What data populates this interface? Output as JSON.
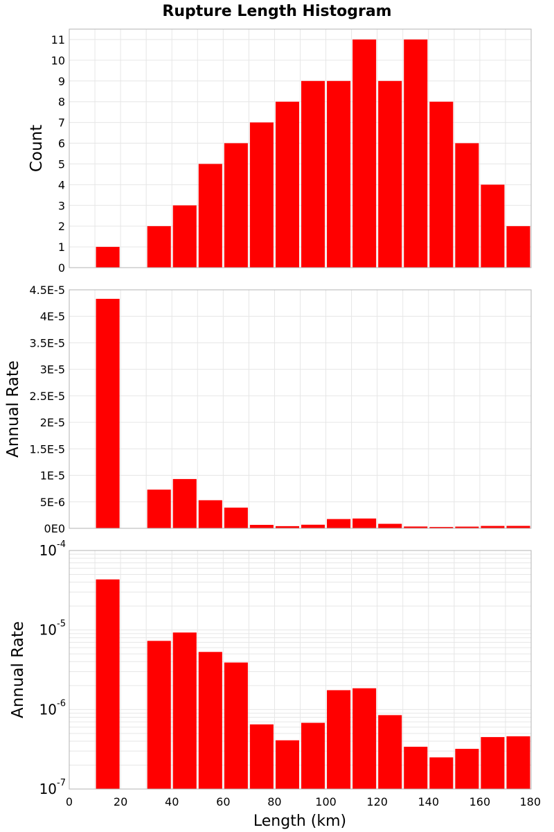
{
  "title": "Rupture Length Histogram",
  "xlabel": "Length (km)",
  "colors": {
    "bar": "#ff0000",
    "grid": "#e6e6e6",
    "frame": "#b3b3b3"
  },
  "chart_data": [
    {
      "type": "bar",
      "ylabel": "Count",
      "scale": "linear",
      "xlim": [
        0,
        180
      ],
      "ylim": [
        0,
        11.5
      ],
      "x": [
        15,
        35,
        45,
        55,
        65,
        75,
        85,
        95,
        105,
        115,
        125,
        135,
        145,
        155,
        165,
        175
      ],
      "bin_width": 10,
      "values": [
        1,
        2,
        3,
        5,
        6,
        7,
        8,
        9,
        9,
        11,
        9,
        11,
        8,
        6,
        4,
        2
      ],
      "yticks": [
        0,
        1,
        2,
        3,
        4,
        5,
        6,
        7,
        8,
        9,
        10,
        11
      ],
      "ytick_labels": [
        "0",
        "1",
        "2",
        "3",
        "4",
        "5",
        "6",
        "7",
        "8",
        "9",
        "10",
        "11"
      ],
      "grid": true
    },
    {
      "type": "bar",
      "ylabel": "Annual Rate",
      "scale": "linear",
      "xlim": [
        0,
        180
      ],
      "ylim": [
        0,
        4.5e-05
      ],
      "x": [
        15,
        35,
        45,
        55,
        65,
        75,
        85,
        95,
        105,
        115,
        125,
        135,
        145,
        155,
        165,
        175
      ],
      "bin_width": 10,
      "values": [
        4.33e-05,
        7.3e-06,
        9.3e-06,
        5.3e-06,
        3.9e-06,
        6.5e-07,
        4.1e-07,
        6.8e-07,
        1.75e-06,
        1.85e-06,
        8.5e-07,
        3.4e-07,
        2.5e-07,
        3.2e-07,
        4.5e-07,
        4.6e-07
      ],
      "yticks": [
        0,
        5e-06,
        1e-05,
        1.5e-05,
        2e-05,
        2.5e-05,
        3e-05,
        3.5e-05,
        4e-05,
        4.5e-05
      ],
      "ytick_labels": [
        "0E0",
        "5E-6",
        "1E-5",
        "1.5E-5",
        "2E-5",
        "2.5E-5",
        "3E-5",
        "3.5E-5",
        "4E-5",
        "4.5E-5"
      ],
      "grid": true
    },
    {
      "type": "bar",
      "ylabel": "Annual Rate",
      "scale": "log",
      "xlim": [
        0,
        180
      ],
      "ylim": [
        1e-07,
        0.0001
      ],
      "x": [
        15,
        35,
        45,
        55,
        65,
        75,
        85,
        95,
        105,
        115,
        125,
        135,
        145,
        155,
        165,
        175
      ],
      "bin_width": 10,
      "values": [
        4.33e-05,
        7.3e-06,
        9.3e-06,
        5.3e-06,
        3.9e-06,
        6.5e-07,
        4.1e-07,
        6.8e-07,
        1.75e-06,
        1.85e-06,
        8.5e-07,
        3.4e-07,
        2.5e-07,
        3.2e-07,
        4.5e-07,
        4.6e-07
      ],
      "ytick_labels": [
        {
          "base": "10",
          "exp": "-7",
          "value": 1e-07
        },
        {
          "base": "10",
          "exp": "-6",
          "value": 1e-06
        },
        {
          "base": "10",
          "exp": "-5",
          "value": 1e-05
        },
        {
          "base": "10",
          "exp": "-4",
          "value": 0.0001
        }
      ],
      "xticks": [
        0,
        20,
        40,
        60,
        80,
        100,
        120,
        140,
        160,
        180
      ],
      "xtick_labels": [
        "0",
        "20",
        "40",
        "60",
        "80",
        "100",
        "120",
        "140",
        "160",
        "180"
      ],
      "grid": true
    }
  ]
}
